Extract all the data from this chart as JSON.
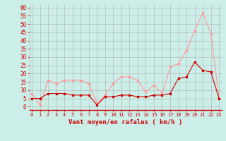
{
  "x": [
    0,
    1,
    2,
    3,
    4,
    5,
    6,
    7,
    8,
    9,
    10,
    11,
    12,
    13,
    14,
    15,
    16,
    17,
    18,
    19,
    20,
    21,
    22,
    23
  ],
  "wind_avg": [
    5,
    5,
    8,
    8,
    8,
    7,
    7,
    7,
    1,
    6,
    6,
    7,
    7,
    6,
    6,
    7,
    7,
    8,
    17,
    18,
    27,
    22,
    21,
    5
  ],
  "wind_gust": [
    8,
    1,
    16,
    14,
    16,
    16,
    16,
    14,
    2,
    7,
    14,
    18,
    18,
    16,
    9,
    13,
    8,
    24,
    26,
    34,
    46,
    57,
    44,
    5
  ],
  "avg_color": "#cc0000",
  "gust_color": "#ff9999",
  "bg_color": "#cceee8",
  "grid_color": "#b0b0b0",
  "xlabel": "Vent moyen/en rafales ( km/h )",
  "xlabel_color": "#cc0000",
  "ylabel_ticks": [
    0,
    5,
    10,
    15,
    20,
    25,
    30,
    35,
    40,
    45,
    50,
    55,
    60
  ],
  "ytick_labels": [
    "0",
    "5",
    "10",
    "15",
    "20",
    "25",
    "30",
    "35",
    "40",
    "45",
    "50",
    "55",
    "60"
  ],
  "ylim": [
    -2,
    62
  ],
  "xlim": [
    -0.3,
    23.3
  ],
  "tick_fontsize": 5.5,
  "xlabel_fontsize": 6.5,
  "linewidth": 0.8,
  "markersize": 2.0
}
